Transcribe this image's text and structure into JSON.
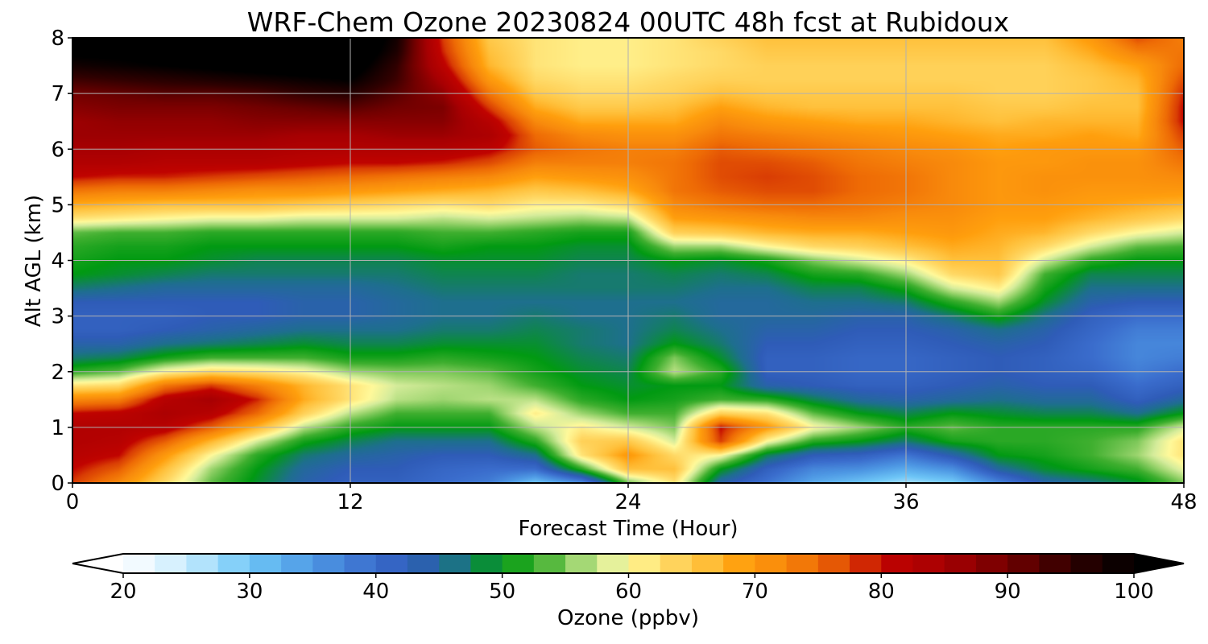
{
  "chart_data": {
    "type": "heatmap",
    "title": "WRF-Chem Ozone  20230824 00UTC 48h fcst at Rubidoux",
    "xlabel": "Forecast Time (Hour)",
    "ylabel": "Alt AGL (km)",
    "xlim": [
      0,
      48
    ],
    "ylim": [
      0,
      8
    ],
    "xticks": [
      0,
      12,
      24,
      36,
      48
    ],
    "yticks": [
      0,
      1,
      2,
      3,
      4,
      5,
      6,
      7,
      8
    ],
    "grid": true,
    "x_hours": [
      0,
      2,
      4,
      6,
      8,
      10,
      12,
      14,
      16,
      18,
      20,
      22,
      24,
      26,
      28,
      30,
      32,
      34,
      36,
      38,
      40,
      42,
      44,
      46,
      48
    ],
    "y_km": [
      0,
      0.25,
      0.5,
      0.75,
      1,
      1.25,
      1.5,
      1.75,
      2,
      2.25,
      2.5,
      2.75,
      3,
      3.25,
      3.5,
      3.75,
      4,
      4.25,
      4.5,
      4.75,
      5,
      5.25,
      5.5,
      5.75,
      6,
      6.25,
      6.5,
      6.75,
      7,
      7.25,
      7.5,
      7.75,
      8
    ],
    "ozone_ppbv_by_time": [
      [
        78,
        80,
        82,
        83,
        83,
        80,
        72,
        62,
        52,
        47,
        44,
        42,
        42,
        43,
        47,
        50,
        51,
        52,
        54,
        62,
        68,
        74,
        80,
        83,
        85,
        86,
        86,
        88,
        90,
        94,
        98,
        101,
        102
      ],
      [
        72,
        76,
        80,
        82,
        83,
        81,
        73,
        63,
        54,
        48,
        44,
        42,
        42,
        43,
        46,
        49,
        50,
        51,
        53,
        61,
        67,
        73,
        79,
        83,
        85,
        86,
        87,
        89,
        91,
        95,
        99,
        101,
        102
      ],
      [
        63,
        66,
        70,
        76,
        82,
        84,
        82,
        74,
        60,
        51,
        46,
        43,
        42,
        43,
        45,
        48,
        50,
        51,
        53,
        60,
        66,
        73,
        79,
        82,
        84,
        86,
        87,
        89,
        92,
        96,
        100,
        102,
        103
      ],
      [
        54,
        56,
        60,
        67,
        76,
        82,
        85,
        78,
        63,
        53,
        47,
        44,
        43,
        43,
        45,
        47,
        49,
        50,
        52,
        59,
        66,
        72,
        78,
        82,
        84,
        86,
        87,
        89,
        92,
        97,
        101,
        103,
        104
      ],
      [
        49,
        50,
        52,
        58,
        67,
        75,
        79,
        73,
        62,
        53,
        48,
        45,
        43,
        43,
        45,
        47,
        48,
        50,
        52,
        59,
        66,
        71,
        77,
        82,
        84,
        86,
        88,
        90,
        93,
        98,
        102,
        104,
        105
      ],
      [
        44,
        45,
        47,
        51,
        57,
        64,
        68,
        67,
        60,
        53,
        49,
        46,
        44,
        44,
        45,
        47,
        48,
        50,
        52,
        58,
        65,
        71,
        76,
        81,
        83,
        85,
        88,
        91,
        95,
        99,
        103,
        105,
        106
      ],
      [
        42,
        43,
        45,
        48,
        52,
        57,
        62,
        62,
        56,
        51,
        48,
        46,
        44,
        44,
        45,
        47,
        48,
        50,
        52,
        58,
        64,
        70,
        75,
        80,
        83,
        85,
        88,
        92,
        96,
        100,
        103,
        105,
        106
      ],
      [
        42,
        43,
        44,
        46,
        50,
        53,
        57,
        58,
        55,
        51,
        48,
        46,
        45,
        45,
        46,
        47,
        48,
        50,
        52,
        58,
        63,
        69,
        74,
        80,
        83,
        86,
        88,
        90,
        92,
        94,
        95,
        97,
        98
      ],
      [
        40,
        41,
        43,
        46,
        50,
        53,
        56,
        57,
        55,
        52,
        49,
        47,
        46,
        46,
        47,
        48,
        49,
        51,
        53,
        57,
        62,
        68,
        73,
        79,
        83,
        86,
        88,
        89,
        87,
        84,
        81,
        79,
        78
      ],
      [
        38,
        40,
        43,
        46,
        50,
        53,
        57,
        56,
        54,
        51,
        49,
        47,
        46,
        46,
        47,
        48,
        49,
        50,
        53,
        58,
        63,
        67,
        72,
        77,
        81,
        84,
        82,
        78,
        74,
        70,
        67,
        66,
        65
      ],
      [
        30,
        40,
        46,
        52,
        57,
        61,
        57,
        53,
        51,
        50,
        49,
        48,
        47,
        46,
        47,
        48,
        49,
        50,
        52,
        57,
        61,
        65,
        69,
        73,
        76,
        75,
        72,
        68,
        65,
        63,
        62,
        62,
        62
      ],
      [
        36,
        52,
        62,
        64,
        61,
        56,
        52,
        50,
        49,
        48,
        47,
        47,
        46,
        46,
        47,
        47,
        48,
        49,
        51,
        56,
        61,
        66,
        70,
        73,
        74,
        72,
        68,
        65,
        63,
        62,
        61,
        61,
        61
      ],
      [
        54,
        66,
        70,
        65,
        58,
        53,
        50,
        49,
        48,
        47,
        46,
        46,
        46,
        46,
        47,
        47,
        48,
        49,
        51,
        57,
        63,
        68,
        71,
        73,
        73,
        71,
        68,
        65,
        63,
        62,
        61,
        61,
        61
      ],
      [
        62,
        66,
        63,
        58,
        55,
        53,
        51,
        50,
        57,
        55,
        50,
        48,
        47,
        46,
        47,
        48,
        50,
        56,
        64,
        69,
        72,
        74,
        74,
        74,
        73,
        71,
        68,
        66,
        64,
        63,
        62,
        62,
        62
      ],
      [
        44,
        50,
        60,
        78,
        80,
        64,
        53,
        50,
        52,
        49,
        47,
        46,
        45,
        45,
        46,
        47,
        49,
        56,
        65,
        70,
        74,
        76,
        77,
        77,
        76,
        74,
        72,
        69,
        66,
        64,
        63,
        63,
        64
      ],
      [
        39,
        42,
        48,
        60,
        70,
        62,
        52,
        44,
        42,
        42,
        43,
        44,
        45,
        45,
        46,
        48,
        51,
        60,
        67,
        71,
        75,
        77,
        78,
        77,
        75,
        73,
        70,
        67,
        65,
        64,
        64,
        65,
        66
      ],
      [
        33,
        37,
        43,
        52,
        60,
        54,
        48,
        43,
        42,
        42,
        43,
        44,
        45,
        46,
        48,
        51,
        55,
        63,
        68,
        72,
        75,
        77,
        77,
        76,
        74,
        72,
        69,
        66,
        65,
        64,
        64,
        65,
        66
      ],
      [
        30,
        36,
        42,
        50,
        56,
        50,
        45,
        42,
        41,
        41,
        42,
        43,
        44,
        46,
        48,
        52,
        58,
        64,
        68,
        72,
        74,
        75,
        75,
        74,
        73,
        71,
        68,
        66,
        65,
        64,
        64,
        65,
        66
      ],
      [
        27,
        33,
        39,
        47,
        52,
        48,
        44,
        42,
        41,
        41,
        42,
        43,
        44,
        47,
        51,
        56,
        61,
        66,
        69,
        71,
        73,
        74,
        74,
        73,
        72,
        70,
        68,
        66,
        65,
        64,
        64,
        65,
        66
      ],
      [
        29,
        36,
        44,
        51,
        54,
        50,
        45,
        43,
        42,
        42,
        43,
        44,
        47,
        52,
        58,
        63,
        66,
        68,
        70,
        71,
        72,
        72,
        72,
        72,
        71,
        69,
        67,
        66,
        65,
        64,
        64,
        65,
        66
      ],
      [
        37,
        45,
        50,
        52,
        52,
        49,
        46,
        44,
        43,
        43,
        44,
        46,
        51,
        56,
        61,
        65,
        66,
        67,
        68,
        69,
        70,
        70,
        70,
        70,
        69,
        68,
        66,
        65,
        64,
        64,
        64,
        65,
        66
      ],
      [
        44,
        49,
        51,
        52,
        52,
        48,
        45,
        43,
        42,
        42,
        43,
        44,
        46,
        49,
        51,
        53,
        58,
        63,
        67,
        69,
        70,
        71,
        71,
        70,
        70,
        68,
        67,
        65,
        64,
        64,
        64,
        65,
        66
      ],
      [
        46,
        51,
        53,
        53,
        52,
        48,
        45,
        43,
        41,
        40,
        40,
        41,
        42,
        44,
        46,
        48,
        52,
        58,
        63,
        67,
        69,
        70,
        71,
        71,
        70,
        69,
        67,
        66,
        65,
        65,
        66,
        68,
        70
      ],
      [
        49,
        53,
        56,
        55,
        52,
        46,
        42,
        40,
        38,
        37,
        37,
        38,
        40,
        43,
        46,
        48,
        50,
        54,
        60,
        65,
        68,
        70,
        71,
        71,
        70,
        68,
        67,
        66,
        66,
        67,
        69,
        73,
        77
      ],
      [
        55,
        59,
        62,
        62,
        58,
        50,
        45,
        42,
        40,
        38,
        37,
        38,
        40,
        43,
        46,
        48,
        50,
        53,
        58,
        63,
        67,
        70,
        72,
        74,
        76,
        78,
        80,
        80,
        79,
        77,
        75,
        74,
        73
      ]
    ],
    "colorbar": {
      "label": "Ozone  (ppbv)",
      "min": 20,
      "max": 100,
      "ticks": [
        20,
        30,
        40,
        50,
        60,
        70,
        80,
        90,
        100
      ],
      "extend": "both",
      "colors": {
        "20": "#ffffff",
        "25": "#c9ecfd",
        "30": "#6ec6f7",
        "35": "#4e98e4",
        "40": "#3a6ccc",
        "43": "#2f5cb8",
        "46": "#1e6f8e",
        "50": "#019a12",
        "53": "#3faf2f",
        "56": "#9dd56f",
        "58": "#d5ec9b",
        "60": "#fff99a",
        "63": "#ffd966",
        "66": "#ffc13c",
        "69": "#ff9f0d",
        "72": "#f88a0c",
        "75": "#ee6b05",
        "78": "#d93d04",
        "80": "#c00300",
        "85": "#a70002",
        "90": "#720000",
        "95": "#300000",
        "100": "#000000"
      }
    }
  }
}
